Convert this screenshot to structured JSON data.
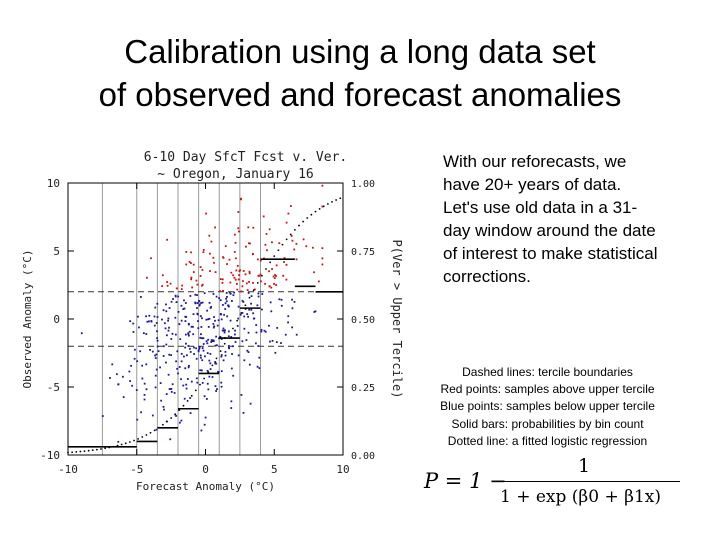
{
  "slide": {
    "title_lines": [
      "Calibration using a long data set",
      "of observed and forecast anomalies"
    ],
    "body_text": "With our reforecasts, we have 20+ years of data. Let's use old data in a 31-day window around the date of interest to make statistical corrections.",
    "legend_lines": [
      "Dashed lines: tercile boundaries",
      "Red points: samples above upper tercile",
      "Blue points: samples below upper tercile",
      "Solid bars: probabilities by bin count",
      "Dotted line: a fitted logistic regression"
    ],
    "formula": {
      "lhs": "P = 1 −",
      "numerator": "1",
      "denominator": "1 + exp (β0 + β1x)"
    }
  },
  "chart_data": {
    "type": "scatter",
    "title_lines": [
      "6-10 Day SfcT Fcst v. Ver.",
      "~ Oregon, January 16"
    ],
    "xlabel": "Forecast Anomaly (°C)",
    "ylabel": "Observed Anomaly (°C)",
    "y2label": "P(Ver > Upper Tercile)",
    "xlim": [
      -10,
      10
    ],
    "ylim": [
      -10,
      10
    ],
    "y2lim": [
      0,
      1
    ],
    "x_ticks": [
      "-10",
      "-5",
      "0",
      "5",
      "10"
    ],
    "y_ticks": [
      "-10",
      "-5",
      "0",
      "5",
      "10"
    ],
    "y2_ticks": [
      "0.00",
      "0.25",
      "0.50",
      "0.75",
      "1.00"
    ],
    "tercile_boundaries": [
      -2,
      2
    ],
    "bin_edges": [
      -7.5,
      -5,
      -3.5,
      -2,
      -0.5,
      1,
      2.5,
      4
    ],
    "bin_probabilities": [
      {
        "x0": -10,
        "x1": -7.5,
        "p": 0.03
      },
      {
        "x0": -7.5,
        "x1": -5,
        "p": 0.03
      },
      {
        "x0": -5,
        "x1": -3.5,
        "p": 0.05
      },
      {
        "x0": -3.5,
        "x1": -2,
        "p": 0.1
      },
      {
        "x0": -2,
        "x1": -0.5,
        "p": 0.17
      },
      {
        "x0": -0.5,
        "x1": 1,
        "p": 0.3
      },
      {
        "x0": 1,
        "x1": 2.5,
        "p": 0.43
      },
      {
        "x0": 2.5,
        "x1": 4,
        "p": 0.54
      },
      {
        "x0": 4,
        "x1": 6.5,
        "p": 0.72
      },
      {
        "x0": 6.5,
        "x1": 8,
        "p": 0.62
      },
      {
        "x0": 8,
        "x1": 10,
        "p": 0.6
      }
    ],
    "logistic_fit": {
      "beta0": -0.9,
      "beta1": 0.38
    },
    "scatter_cloud": {
      "n": 520,
      "slope": 0.55,
      "intercept": -0.4,
      "x_mean": 0.3,
      "x_sd": 3.3,
      "noise_sd": 3.2,
      "x_range": [
        -9,
        8.5
      ],
      "y_range": [
        -9.8,
        9.8
      ]
    },
    "point_colors": {
      "above_upper_tercile": "#cc1111",
      "below_upper_tercile": "#1a1a99"
    },
    "grid": false
  }
}
